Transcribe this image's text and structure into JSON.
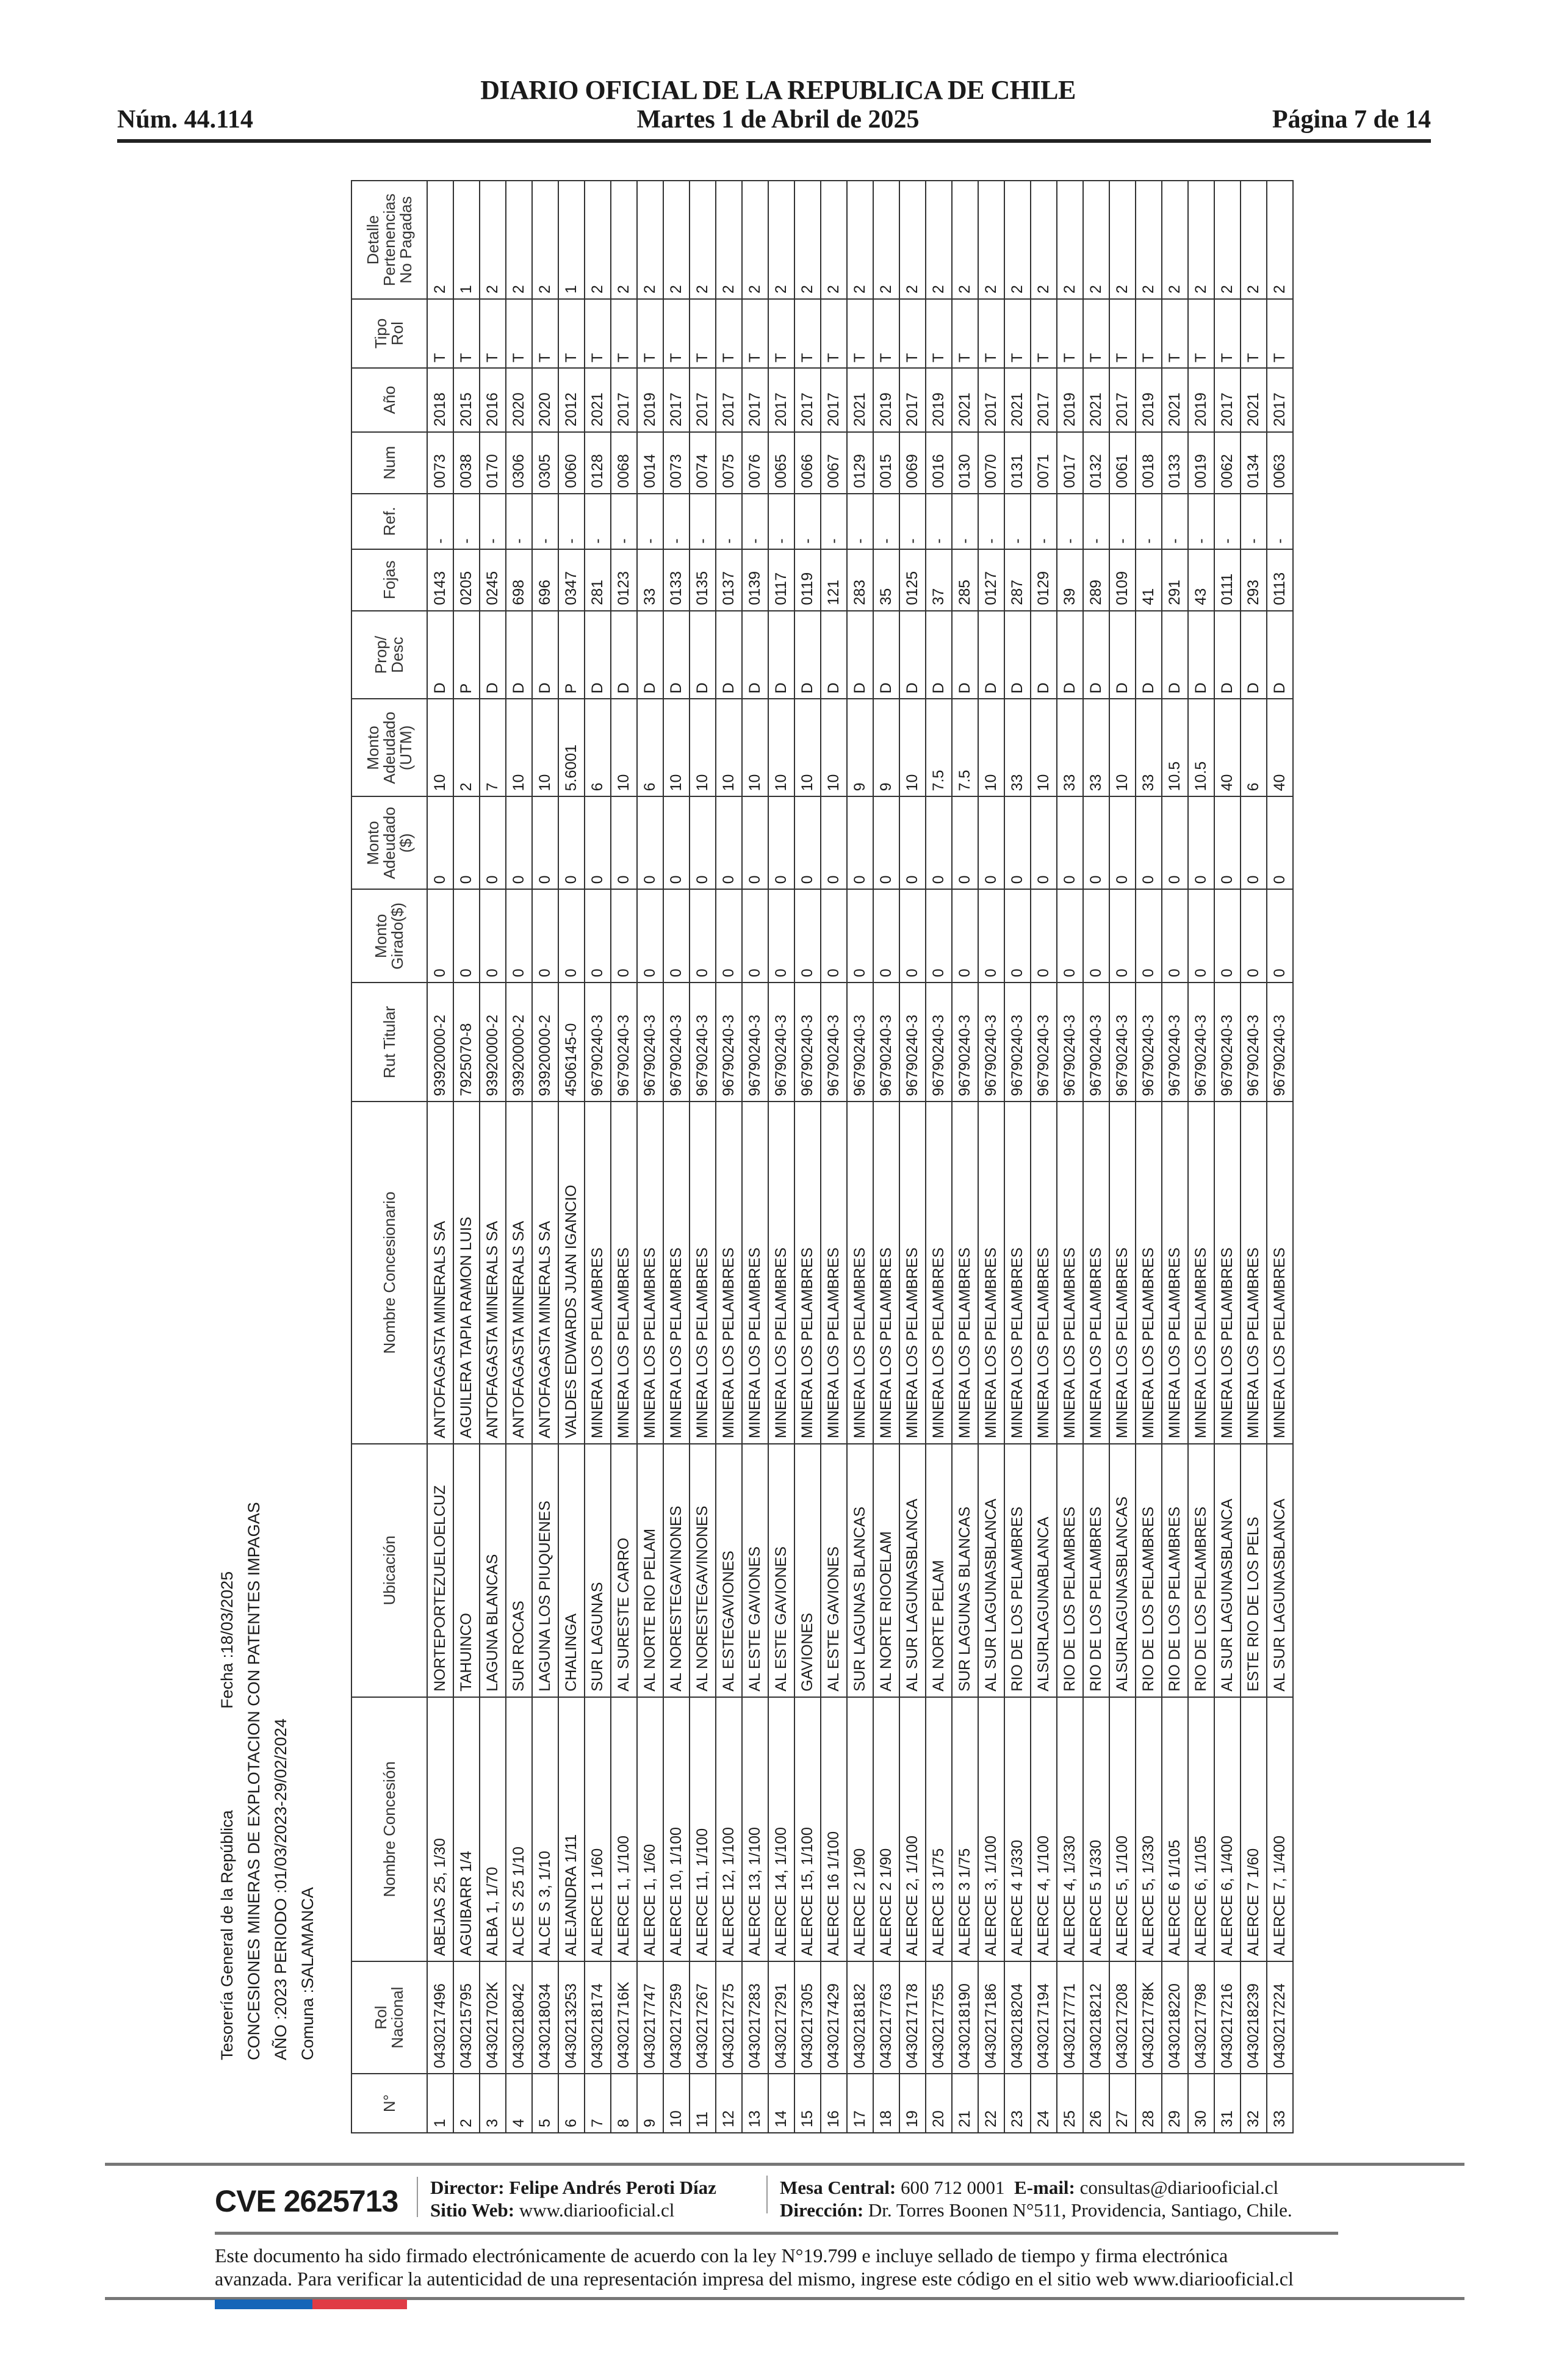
{
  "header": {
    "title": "DIARIO OFICIAL DE LA REPUBLICA DE CHILE",
    "number": "Núm. 44.114",
    "date": "Martes 1 de Abril de 2025",
    "page": "Página 7 de 14"
  },
  "meta": {
    "institution": "Tesorería General de la República",
    "fecha": "Fecha :18/03/2025",
    "subject": "CONCESIONES MINERAS DE EXPLOTACION CON PATENTES IMPAGAS",
    "period": "AÑO :2023 PERIODO :01/03/2023-29/02/2024",
    "comuna": "Comuna :SALAMANCA"
  },
  "table": {
    "columns": [
      "N°",
      "Rol\nNacional",
      "Nombre Concesión",
      "Ubicación",
      "Nombre Concesionario",
      "Rut Titular",
      "Monto\nGirado($)",
      "Monto\nAdeudado\n($)",
      "Monto\nAdeudado\n(UTM)",
      "Prop/\nDesc",
      "Fojas",
      "Ref.",
      "Num",
      "Año",
      "Tipo\nRol",
      "Detalle\nPertenencias\nNo Pagadas"
    ],
    "rows": [
      [
        "1",
        "0430217496",
        "ABEJAS 25, 1/30",
        "NORTEPORTEZUELOELCUZ",
        "ANTOFAGASTA MINERALS SA",
        "93920000-2",
        "0",
        "0",
        "10",
        "D",
        "0143",
        "-",
        "0073",
        "2018",
        "T",
        "2"
      ],
      [
        "2",
        "0430215795",
        "AGUIBARR 1/4",
        "TAHUINCO",
        "AGUILERA TAPIA RAMON LUIS",
        "7925070-8",
        "0",
        "0",
        "2",
        "P",
        "0205",
        "-",
        "0038",
        "2015",
        "T",
        "1"
      ],
      [
        "3",
        "043021702K",
        "ALBA 1, 1/70",
        "LAGUNA BLANCAS",
        "ANTOFAGASTA MINERALS SA",
        "93920000-2",
        "0",
        "0",
        "7",
        "D",
        "0245",
        "-",
        "0170",
        "2016",
        "T",
        "2"
      ],
      [
        "4",
        "0430218042",
        "ALCE S 25 1/10",
        "SUR ROCAS",
        "ANTOFAGASTA MINERALS SA",
        "93920000-2",
        "0",
        "0",
        "10",
        "D",
        "698",
        "-",
        "0306",
        "2020",
        "T",
        "2"
      ],
      [
        "5",
        "0430218034",
        "ALCE S 3, 1/10",
        "LAGUNA LOS PIUQUENES",
        "ANTOFAGASTA MINERALS SA",
        "93920000-2",
        "0",
        "0",
        "10",
        "D",
        "696",
        "-",
        "0305",
        "2020",
        "T",
        "2"
      ],
      [
        "6",
        "0430213253",
        "ALEJANDRA 1/11",
        "CHALINGA",
        "VALDES EDWARDS JUAN IGANCIO",
        "4506145-0",
        "0",
        "0",
        "5.6001",
        "P",
        "0347",
        "-",
        "0060",
        "2012",
        "T",
        "1"
      ],
      [
        "7",
        "0430218174",
        "ALERCE 1 1/60",
        "SUR LAGUNAS",
        "MINERA LOS PELAMBRES",
        "96790240-3",
        "0",
        "0",
        "6",
        "D",
        "281",
        "-",
        "0128",
        "2021",
        "T",
        "2"
      ],
      [
        "8",
        "043021716K",
        "ALERCE 1, 1/100",
        "AL SURESTE CARRO",
        "MINERA LOS PELAMBRES",
        "96790240-3",
        "0",
        "0",
        "10",
        "D",
        "0123",
        "-",
        "0068",
        "2017",
        "T",
        "2"
      ],
      [
        "9",
        "0430217747",
        "ALERCE 1, 1/60",
        "AL NORTE RIO PELAM",
        "MINERA LOS PELAMBRES",
        "96790240-3",
        "0",
        "0",
        "6",
        "D",
        "33",
        "-",
        "0014",
        "2019",
        "T",
        "2"
      ],
      [
        "10",
        "0430217259",
        "ALERCE 10, 1/100",
        "AL NORESTEGAVINONES",
        "MINERA LOS PELAMBRES",
        "96790240-3",
        "0",
        "0",
        "10",
        "D",
        "0133",
        "-",
        "0073",
        "2017",
        "T",
        "2"
      ],
      [
        "11",
        "0430217267",
        "ALERCE 11, 1/100",
        "AL NORESTEGAVINONES",
        "MINERA LOS PELAMBRES",
        "96790240-3",
        "0",
        "0",
        "10",
        "D",
        "0135",
        "-",
        "0074",
        "2017",
        "T",
        "2"
      ],
      [
        "12",
        "0430217275",
        "ALERCE 12, 1/100",
        "AL ESTEGAVIONES",
        "MINERA LOS PELAMBRES",
        "96790240-3",
        "0",
        "0",
        "10",
        "D",
        "0137",
        "-",
        "0075",
        "2017",
        "T",
        "2"
      ],
      [
        "13",
        "0430217283",
        "ALERCE 13, 1/100",
        "AL ESTE GAVIONES",
        "MINERA LOS PELAMBRES",
        "96790240-3",
        "0",
        "0",
        "10",
        "D",
        "0139",
        "-",
        "0076",
        "2017",
        "T",
        "2"
      ],
      [
        "14",
        "0430217291",
        "ALERCE 14, 1/100",
        "AL ESTE GAVIONES",
        "MINERA LOS PELAMBRES",
        "96790240-3",
        "0",
        "0",
        "10",
        "D",
        "0117",
        "-",
        "0065",
        "2017",
        "T",
        "2"
      ],
      [
        "15",
        "0430217305",
        "ALERCE 15, 1/100",
        "GAVIONES",
        "MINERA LOS PELAMBRES",
        "96790240-3",
        "0",
        "0",
        "10",
        "D",
        "0119",
        "-",
        "0066",
        "2017",
        "T",
        "2"
      ],
      [
        "16",
        "0430217429",
        "ALERCE 16 1/100",
        "AL ESTE GAVIONES",
        "MINERA LOS PELAMBRES",
        "96790240-3",
        "0",
        "0",
        "10",
        "D",
        "121",
        "-",
        "0067",
        "2017",
        "T",
        "2"
      ],
      [
        "17",
        "0430218182",
        "ALERCE 2 1/90",
        "SUR LAGUNAS BLANCAS",
        "MINERA LOS PELAMBRES",
        "96790240-3",
        "0",
        "0",
        "9",
        "D",
        "283",
        "-",
        "0129",
        "2021",
        "T",
        "2"
      ],
      [
        "18",
        "0430217763",
        "ALERCE 2 1/90",
        "AL NORTE RIOOELAM",
        "MINERA LOS PELAMBRES",
        "96790240-3",
        "0",
        "0",
        "9",
        "D",
        "35",
        "-",
        "0015",
        "2019",
        "T",
        "2"
      ],
      [
        "19",
        "0430217178",
        "ALERCE 2, 1/100",
        "AL SUR LAGUNASBLANCA",
        "MINERA LOS PELAMBRES",
        "96790240-3",
        "0",
        "0",
        "10",
        "D",
        "0125",
        "-",
        "0069",
        "2017",
        "T",
        "2"
      ],
      [
        "20",
        "0430217755",
        "ALERCE 3 1/75",
        "AL NORTE PELAM",
        "MINERA LOS PELAMBRES",
        "96790240-3",
        "0",
        "0",
        "7.5",
        "D",
        "37",
        "-",
        "0016",
        "2019",
        "T",
        "2"
      ],
      [
        "21",
        "0430218190",
        "ALERCE 3 1/75",
        "SUR LAGUNAS BLANCAS",
        "MINERA LOS PELAMBRES",
        "96790240-3",
        "0",
        "0",
        "7.5",
        "D",
        "285",
        "-",
        "0130",
        "2021",
        "T",
        "2"
      ],
      [
        "22",
        "0430217186",
        "ALERCE 3, 1/100",
        "AL SUR LAGUNASBLANCA",
        "MINERA LOS PELAMBRES",
        "96790240-3",
        "0",
        "0",
        "10",
        "D",
        "0127",
        "-",
        "0070",
        "2017",
        "T",
        "2"
      ],
      [
        "23",
        "0430218204",
        "ALERCE 4 1/330",
        "RIO DE LOS PELAMBRES",
        "MINERA LOS PELAMBRES",
        "96790240-3",
        "0",
        "0",
        "33",
        "D",
        "287",
        "-",
        "0131",
        "2021",
        "T",
        "2"
      ],
      [
        "24",
        "0430217194",
        "ALERCE 4, 1/100",
        "ALSURLAGUNABLANCA",
        "MINERA LOS PELAMBRES",
        "96790240-3",
        "0",
        "0",
        "10",
        "D",
        "0129",
        "-",
        "0071",
        "2017",
        "T",
        "2"
      ],
      [
        "25",
        "0430217771",
        "ALERCE 4, 1/330",
        "RIO DE LOS PELAMBRES",
        "MINERA LOS PELAMBRES",
        "96790240-3",
        "0",
        "0",
        "33",
        "D",
        "39",
        "-",
        "0017",
        "2019",
        "T",
        "2"
      ],
      [
        "26",
        "0430218212",
        "ALERCE 5 1/330",
        "RIO DE LOS PELAMBRES",
        "MINERA LOS PELAMBRES",
        "96790240-3",
        "0",
        "0",
        "33",
        "D",
        "289",
        "-",
        "0132",
        "2021",
        "T",
        "2"
      ],
      [
        "27",
        "0430217208",
        "ALERCE 5, 1/100",
        "ALSURLAGUNASBLANCAS",
        "MINERA LOS PELAMBRES",
        "96790240-3",
        "0",
        "0",
        "10",
        "D",
        "0109",
        "-",
        "0061",
        "2017",
        "T",
        "2"
      ],
      [
        "28",
        "043021778K",
        "ALERCE 5, 1/330",
        "RIO DE LOS PELAMBRES",
        "MINERA LOS PELAMBRES",
        "96790240-3",
        "0",
        "0",
        "33",
        "D",
        "41",
        "-",
        "0018",
        "2019",
        "T",
        "2"
      ],
      [
        "29",
        "0430218220",
        "ALERCE 6 1/105",
        "RIO DE LOS PELAMBRES",
        "MINERA LOS PELAMBRES",
        "96790240-3",
        "0",
        "0",
        "10.5",
        "D",
        "291",
        "-",
        "0133",
        "2021",
        "T",
        "2"
      ],
      [
        "30",
        "0430217798",
        "ALERCE 6, 1/105",
        "RIO DE LOS PELAMBRES",
        "MINERA LOS PELAMBRES",
        "96790240-3",
        "0",
        "0",
        "10.5",
        "D",
        "43",
        "-",
        "0019",
        "2019",
        "T",
        "2"
      ],
      [
        "31",
        "0430217216",
        "ALERCE 6, 1/400",
        "AL SUR LAGUNASBLANCA",
        "MINERA LOS PELAMBRES",
        "96790240-3",
        "0",
        "0",
        "40",
        "D",
        "0111",
        "-",
        "0062",
        "2017",
        "T",
        "2"
      ],
      [
        "32",
        "0430218239",
        "ALERCE 7 1/60",
        "ESTE RIO DE LOS PELS",
        "MINERA LOS PELAMBRES",
        "96790240-3",
        "0",
        "0",
        "6",
        "D",
        "293",
        "-",
        "0134",
        "2021",
        "T",
        "2"
      ],
      [
        "33",
        "0430217224",
        "ALERCE 7, 1/400",
        "AL SUR LAGUNASBLANCA",
        "MINERA LOS PELAMBRES",
        "96790240-3",
        "0",
        "0",
        "40",
        "D",
        "0113",
        "-",
        "0063",
        "2017",
        "T",
        "2"
      ]
    ]
  },
  "footer": {
    "cve": "CVE 2625713",
    "director_label": "Director:",
    "director": "Felipe Andrés Peroti Díaz",
    "web_label": "Sitio Web:",
    "web": "www.diariooficial.cl",
    "mesa_label": "Mesa Central:",
    "mesa": "600 712 0001",
    "email_label": "E-mail:",
    "email": "consultas@diariooficial.cl",
    "address_label": "Dirección:",
    "address": "Dr. Torres Boonen N°511, Providencia, Santiago, Chile.",
    "signature_line1": "Este documento ha sido firmado electrónicamente de acuerdo con la ley N°19.799 e incluye sellado de tiempo y firma electrónica",
    "signature_line2": "avanzada. Para verificar la autenticidad de una representación impresa del mismo, ingrese este código en el sitio web www.diariooficial.cl",
    "flag_colors": [
      "#1565b8",
      "#e03b45"
    ]
  }
}
